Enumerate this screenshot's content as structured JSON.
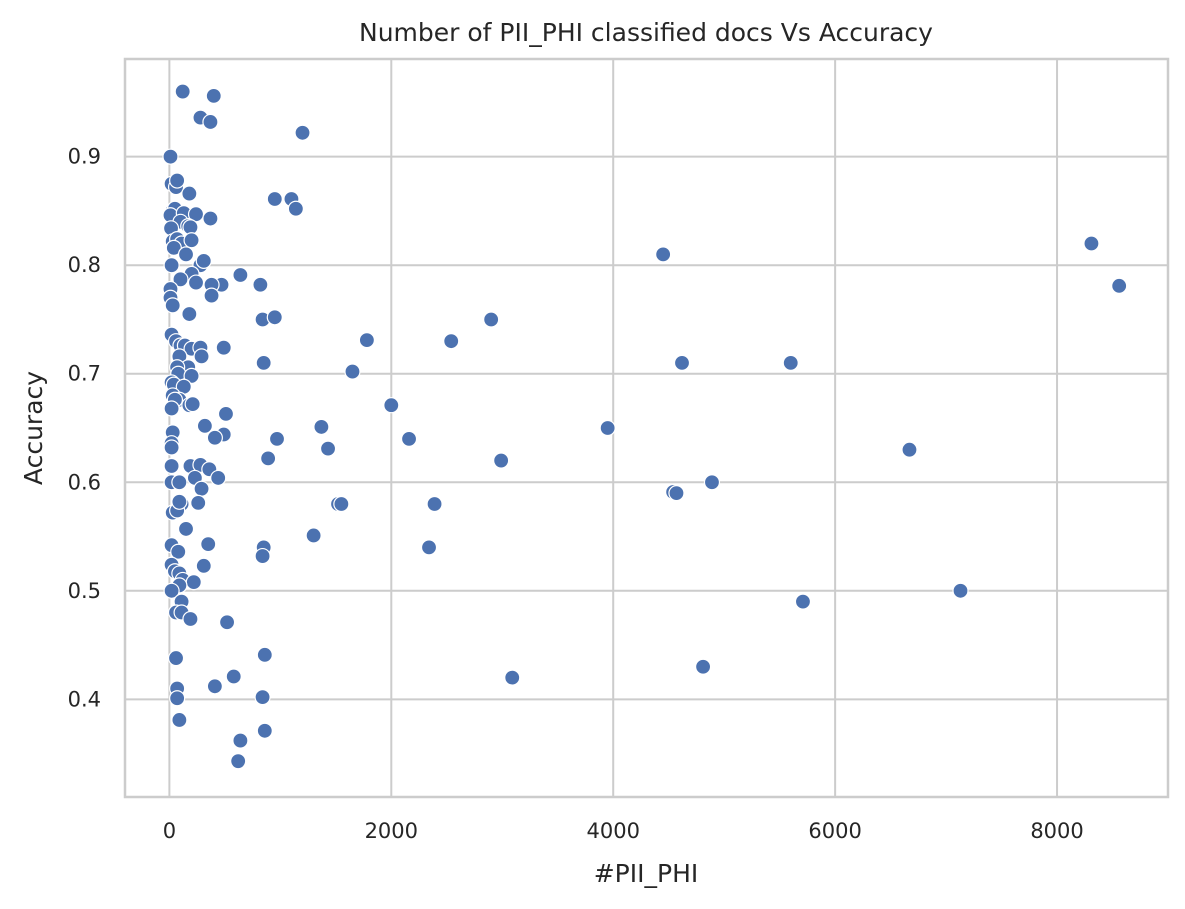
{
  "chart_data": {
    "type": "scatter",
    "title": "Number of PII_PHI classified docs Vs Accuracy",
    "xlabel": "#PII_PHI",
    "ylabel": "Accuracy",
    "xlim": [
      -400,
      9000
    ],
    "ylim": [
      0.31,
      0.99
    ],
    "xticks": [
      0,
      2000,
      4000,
      6000,
      8000
    ],
    "yticks": [
      0.4,
      0.5,
      0.6,
      0.7,
      0.8,
      0.9
    ],
    "xtick_labels": [
      "0",
      "2000",
      "4000",
      "6000",
      "8000"
    ],
    "ytick_labels": [
      "0.4",
      "0.5",
      "0.6",
      "0.7",
      "0.8",
      "0.9"
    ],
    "grid": true,
    "color": "#4c72b0",
    "points": [
      [
        120,
        0.96
      ],
      [
        400,
        0.956
      ],
      [
        280,
        0.936
      ],
      [
        370,
        0.932
      ],
      [
        1200,
        0.922
      ],
      [
        10,
        0.9
      ],
      [
        20,
        0.875
      ],
      [
        60,
        0.872
      ],
      [
        70,
        0.878
      ],
      [
        180,
        0.866
      ],
      [
        950,
        0.861
      ],
      [
        1100,
        0.861
      ],
      [
        1140,
        0.852
      ],
      [
        30,
        0.85
      ],
      [
        50,
        0.852
      ],
      [
        10,
        0.846
      ],
      [
        130,
        0.848
      ],
      [
        240,
        0.847
      ],
      [
        370,
        0.843
      ],
      [
        100,
        0.84
      ],
      [
        170,
        0.836
      ],
      [
        190,
        0.835
      ],
      [
        15,
        0.834
      ],
      [
        30,
        0.822
      ],
      [
        70,
        0.824
      ],
      [
        110,
        0.82
      ],
      [
        200,
        0.823
      ],
      [
        40,
        0.816
      ],
      [
        150,
        0.81
      ],
      [
        20,
        0.8
      ],
      [
        280,
        0.8
      ],
      [
        310,
        0.804
      ],
      [
        200,
        0.792
      ],
      [
        100,
        0.787
      ],
      [
        240,
        0.784
      ],
      [
        640,
        0.791
      ],
      [
        470,
        0.782
      ],
      [
        380,
        0.782
      ],
      [
        820,
        0.782
      ],
      [
        10,
        0.778
      ],
      [
        10,
        0.77
      ],
      [
        30,
        0.763
      ],
      [
        380,
        0.772
      ],
      [
        180,
        0.755
      ],
      [
        840,
        0.75
      ],
      [
        950,
        0.752
      ],
      [
        20,
        0.736
      ],
      [
        60,
        0.73
      ],
      [
        100,
        0.726
      ],
      [
        140,
        0.726
      ],
      [
        200,
        0.723
      ],
      [
        280,
        0.724
      ],
      [
        490,
        0.724
      ],
      [
        90,
        0.716
      ],
      [
        290,
        0.716
      ],
      [
        170,
        0.706
      ],
      [
        70,
        0.706
      ],
      [
        80,
        0.7
      ],
      [
        200,
        0.698
      ],
      [
        850,
        0.71
      ],
      [
        20,
        0.692
      ],
      [
        40,
        0.69
      ],
      [
        130,
        0.688
      ],
      [
        30,
        0.68
      ],
      [
        90,
        0.676
      ],
      [
        50,
        0.676
      ],
      [
        20,
        0.668
      ],
      [
        180,
        0.671
      ],
      [
        210,
        0.672
      ],
      [
        510,
        0.663
      ],
      [
        30,
        0.646
      ],
      [
        320,
        0.652
      ],
      [
        490,
        0.644
      ],
      [
        410,
        0.641
      ],
      [
        970,
        0.64
      ],
      [
        20,
        0.636
      ],
      [
        20,
        0.632
      ],
      [
        890,
        0.622
      ],
      [
        20,
        0.615
      ],
      [
        190,
        0.615
      ],
      [
        280,
        0.616
      ],
      [
        360,
        0.612
      ],
      [
        230,
        0.604
      ],
      [
        440,
        0.604
      ],
      [
        20,
        0.6
      ],
      [
        90,
        0.6
      ],
      [
        290,
        0.594
      ],
      [
        110,
        0.58
      ],
      [
        260,
        0.581
      ],
      [
        30,
        0.572
      ],
      [
        70,
        0.574
      ],
      [
        90,
        0.582
      ],
      [
        150,
        0.557
      ],
      [
        20,
        0.542
      ],
      [
        80,
        0.536
      ],
      [
        350,
        0.543
      ],
      [
        850,
        0.54
      ],
      [
        840,
        0.532
      ],
      [
        20,
        0.524
      ],
      [
        50,
        0.518
      ],
      [
        90,
        0.516
      ],
      [
        310,
        0.523
      ],
      [
        120,
        0.51
      ],
      [
        220,
        0.508
      ],
      [
        90,
        0.505
      ],
      [
        20,
        0.5
      ],
      [
        110,
        0.49
      ],
      [
        60,
        0.48
      ],
      [
        110,
        0.48
      ],
      [
        190,
        0.474
      ],
      [
        520,
        0.471
      ],
      [
        60,
        0.438
      ],
      [
        860,
        0.441
      ],
      [
        580,
        0.421
      ],
      [
        70,
        0.41
      ],
      [
        410,
        0.412
      ],
      [
        70,
        0.401
      ],
      [
        840,
        0.402
      ],
      [
        90,
        0.381
      ],
      [
        640,
        0.362
      ],
      [
        860,
        0.371
      ],
      [
        620,
        0.343
      ],
      [
        1300,
        0.551
      ],
      [
        1370,
        0.651
      ],
      [
        1430,
        0.631
      ],
      [
        1520,
        0.58
      ],
      [
        1550,
        0.58
      ],
      [
        1650,
        0.702
      ],
      [
        1780,
        0.731
      ],
      [
        2000,
        0.671
      ],
      [
        2160,
        0.64
      ],
      [
        2340,
        0.54
      ],
      [
        2390,
        0.58
      ],
      [
        2540,
        0.73
      ],
      [
        2900,
        0.75
      ],
      [
        2990,
        0.62
      ],
      [
        3090,
        0.42
      ],
      [
        3950,
        0.65
      ],
      [
        4450,
        0.81
      ],
      [
        4540,
        0.591
      ],
      [
        4570,
        0.59
      ],
      [
        4620,
        0.71
      ],
      [
        4810,
        0.43
      ],
      [
        4890,
        0.6
      ],
      [
        5600,
        0.71
      ],
      [
        5710,
        0.49
      ],
      [
        6670,
        0.63
      ],
      [
        7130,
        0.5
      ],
      [
        8310,
        0.82
      ],
      [
        8560,
        0.781
      ]
    ]
  }
}
